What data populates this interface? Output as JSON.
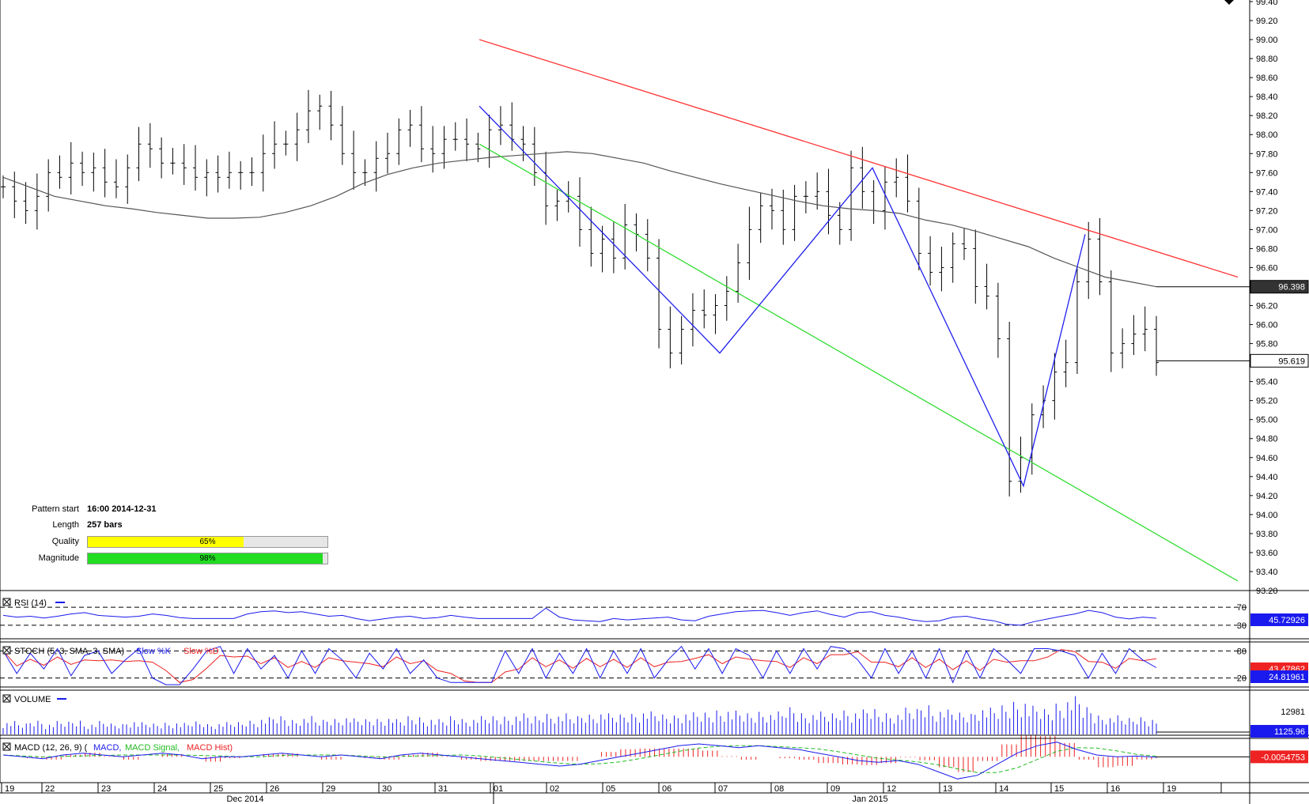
{
  "chart_data": {
    "type": "ohlc",
    "instrument_note": "",
    "y_axis": {
      "min": 93.2,
      "max": 99.4,
      "tick_step": 0.2,
      "ticks": [
        "99.40",
        "99.20",
        "99.00",
        "98.80",
        "98.60",
        "98.40",
        "98.20",
        "98.00",
        "97.80",
        "97.60",
        "97.40",
        "97.20",
        "97.00",
        "96.80",
        "96.60",
        "96.40",
        "96.20",
        "96.00",
        "95.80",
        "95.60",
        "95.40",
        "95.20",
        "95.00",
        "94.80",
        "94.60",
        "94.40",
        "94.20",
        "94.00",
        "93.80",
        "93.60",
        "93.40",
        "93.20"
      ]
    },
    "price_tags": {
      "moving_average": "96.398",
      "last_price": "95.619"
    },
    "x_axis": {
      "day_labels": [
        "19",
        "22",
        "23",
        "24",
        "25",
        "26",
        "29",
        "30",
        "31",
        "01",
        "02",
        "05",
        "06",
        "07",
        "08",
        "09",
        "12",
        "13",
        "14",
        "15",
        "16",
        "19"
      ],
      "month_labels": [
        "Dec 2014",
        "Jan 2015"
      ]
    },
    "close_series": [
      97.45,
      97.3,
      97.2,
      97.35,
      97.6,
      97.55,
      97.7,
      97.6,
      97.65,
      97.5,
      97.45,
      97.65,
      97.9,
      97.85,
      97.7,
      97.7,
      97.65,
      97.55,
      97.6,
      97.55,
      97.6,
      97.6,
      97.6,
      97.8,
      97.9,
      97.9,
      98.05,
      98.25,
      98.3,
      98.1,
      97.8,
      97.6,
      97.6,
      97.75,
      97.8,
      98.05,
      98.1,
      97.85,
      97.8,
      97.95,
      97.95,
      97.9,
      97.85,
      98.05,
      98.1,
      97.95,
      97.9,
      97.6,
      97.25,
      97.3,
      97.35,
      97.0,
      96.75,
      96.9,
      96.7,
      97.05,
      96.95,
      96.7,
      95.95,
      95.7,
      95.95,
      96.15,
      96.1,
      96.2,
      96.35,
      96.65,
      97.0,
      97.25,
      97.2,
      97.0,
      97.35,
      97.35,
      97.4,
      97.15,
      97.0,
      97.65,
      97.4,
      97.2,
      97.5,
      97.55,
      97.3,
      96.75,
      96.55,
      96.6,
      96.85,
      96.8,
      96.4,
      96.3,
      95.85,
      94.35,
      94.6,
      95.05,
      95.2,
      95.5,
      95.6,
      96.45,
      96.9,
      96.45,
      95.7,
      95.8,
      95.9,
      95.95,
      95.6
    ],
    "moving_average_series": [
      97.55,
      97.45,
      97.35,
      97.3,
      97.25,
      97.22,
      97.18,
      97.15,
      97.12,
      97.12,
      97.13,
      97.18,
      97.25,
      97.35,
      97.48,
      97.58,
      97.65,
      97.7,
      97.73,
      97.76,
      97.78,
      97.8,
      97.82,
      97.8,
      97.75,
      97.7,
      97.62,
      97.55,
      97.48,
      97.42,
      97.36,
      97.3,
      97.25,
      97.22,
      97.2,
      97.17,
      97.1,
      97.05,
      96.98,
      96.9,
      96.82,
      96.7,
      96.6,
      96.5,
      96.45,
      96.398
    ],
    "lines": {
      "upper_channel": [
        [
          0.0,
          99.0
        ],
        [
          1.0,
          96.5
        ]
      ],
      "lower_channel": [
        [
          0.0,
          97.9
        ],
        [
          1.0,
          93.3
        ]
      ],
      "zigzag": [
        98.3,
        95.7,
        97.65,
        94.3,
        96.95
      ]
    },
    "rsi": {
      "label": "RSI (14)",
      "levels": [
        "70",
        "30"
      ],
      "value": "45.72926",
      "values": [
        52,
        48,
        50,
        46,
        50,
        55,
        58,
        52,
        50,
        48,
        50,
        55,
        52,
        47,
        45,
        45,
        45,
        45,
        55,
        60,
        62,
        58,
        60,
        55,
        50,
        52,
        45,
        40,
        44,
        48,
        50,
        45,
        47,
        52,
        48,
        45,
        45,
        45,
        45,
        45,
        68,
        48,
        42,
        40,
        38,
        45,
        42,
        44,
        46,
        48,
        42,
        40,
        50,
        55,
        60,
        62,
        63,
        58,
        52,
        58,
        62,
        54,
        48,
        58,
        60,
        52,
        48,
        42,
        38,
        40,
        48,
        50,
        44,
        40,
        32,
        30,
        38,
        44,
        50,
        55,
        63,
        58,
        48,
        44,
        48,
        45.7
      ]
    },
    "stoch": {
      "label": "STOCH (5, 3, SMA, 3, SMA)",
      "k_label": "Slow %K",
      "d_label": "Slow %D",
      "levels": [
        "80",
        "20"
      ],
      "k_value": "43.47862",
      "d_value": "24.81961",
      "values": [
        80,
        30,
        75,
        40,
        85,
        25,
        70,
        80,
        30,
        60,
        85,
        20,
        5,
        5,
        40,
        80,
        90,
        30,
        85,
        40,
        70,
        20,
        80,
        30,
        85,
        60,
        20,
        75,
        40,
        85,
        30,
        60,
        20,
        10,
        10,
        10,
        10,
        80,
        30,
        85,
        20,
        75,
        30,
        85,
        20,
        80,
        30,
        85,
        20,
        60,
        90,
        40,
        85,
        30,
        85,
        70,
        20,
        80,
        30,
        85,
        40,
        90,
        85,
        60,
        20,
        85,
        30,
        80,
        20,
        85,
        10,
        80,
        20,
        85,
        60,
        30,
        85,
        85,
        80,
        70,
        20,
        75,
        30,
        85,
        60,
        43
      ]
    },
    "volume": {
      "label": "VOLUME",
      "tick": "12981",
      "value": "1125.96",
      "values": [
        0.35,
        0.3,
        0.4,
        0.3,
        0.35,
        0.4,
        0.3,
        0.35,
        0.3,
        0.38,
        0.32,
        0.3,
        0.34,
        0.3,
        0.36,
        0.3,
        0.32,
        0.34,
        0.4,
        0.45,
        0.5,
        0.42,
        0.48,
        0.4,
        0.45,
        0.5,
        0.42,
        0.45,
        0.48,
        0.4,
        0.5,
        0.45,
        0.4,
        0.5,
        0.45,
        0.48,
        0.5,
        0.52,
        0.55,
        0.5,
        0.6,
        0.55,
        0.5,
        0.58,
        0.62,
        0.55,
        0.6,
        0.65,
        0.6,
        0.55,
        0.62,
        0.58,
        0.6,
        0.7,
        0.62,
        0.58,
        0.66,
        0.6,
        0.75,
        0.62,
        0.6,
        0.58,
        0.7,
        0.65,
        0.7,
        0.62,
        0.6,
        0.7,
        0.85,
        0.7,
        0.65,
        0.6,
        0.75,
        0.7,
        0.8,
        0.95,
        0.75,
        0.7,
        0.9,
        1.0,
        0.75,
        0.55,
        0.5,
        0.45,
        0.5,
        0.45
      ]
    },
    "macd": {
      "label": "MACD (12, 26, 9)",
      "legend": [
        "MACD",
        "MACD Signal",
        "MACD Hist"
      ],
      "value": "-0.0054753",
      "macd_values": [
        0.05,
        0.0,
        -0.05,
        0.05,
        0.1,
        0.05,
        0.0,
        0.05,
        0.1,
        0.05,
        -0.05,
        0.0,
        0.0,
        0.05,
        0.1,
        0.05,
        0.0,
        0.05,
        0.0,
        -0.05,
        0.05,
        0.1,
        0.05,
        0.0,
        -0.05,
        -0.1,
        -0.15,
        -0.2,
        -0.25,
        -0.2,
        -0.1,
        0.0,
        0.1,
        0.2,
        0.3,
        0.35,
        0.3,
        0.25,
        0.3,
        0.25,
        0.2,
        0.1,
        0.0,
        -0.1,
        -0.15,
        -0.1,
        -0.2,
        -0.4,
        -0.6,
        -0.5,
        -0.2,
        0.1,
        0.3,
        0.4,
        0.2,
        0.05,
        0.0,
        0.02,
        -0.01
      ]
    },
    "pattern_info": {
      "pattern_start_label": "Pattern start",
      "pattern_start": "16:00 2014-12-31",
      "length_label": "Length",
      "length": "257 bars",
      "quality_label": "Quality",
      "quality": "65%",
      "quality_fraction": 0.65,
      "magnitude_label": "Magnitude",
      "magnitude": "98%",
      "magnitude_fraction": 0.98
    },
    "colors": {
      "upper_channel": "#ff3030",
      "lower_channel": "#33dd33",
      "zigzag": "#2020ee",
      "bars": "#000000",
      "ma": "#555555",
      "quality_bar": "#ffff00",
      "magnitude_bar": "#22dd22"
    }
  }
}
